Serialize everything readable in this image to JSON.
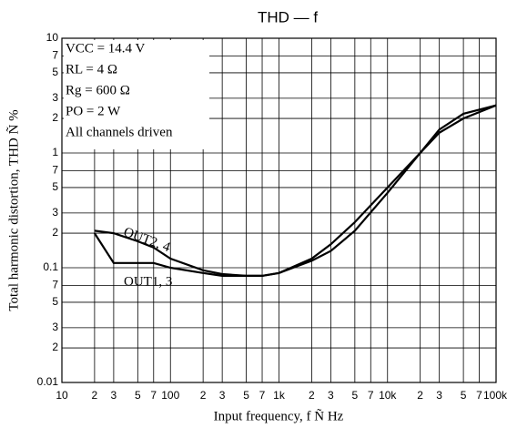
{
  "chart_data": {
    "type": "line",
    "title": "THD — f",
    "xlabel": "Input frequency, f Ñ  Hz",
    "ylabel": "Total harmonic distortion, THD Ñ %",
    "xlog": true,
    "ylog": true,
    "grid": true,
    "xlim": [
      10,
      100000
    ],
    "ylim": [
      0.01,
      10
    ],
    "xticks": [
      10,
      {
        "value": 20,
        "label": "2"
      },
      {
        "value": 30,
        "label": "3"
      },
      {
        "value": 50,
        "label": "5"
      },
      {
        "value": 70,
        "label": "7"
      },
      100,
      {
        "value": 200,
        "label": "2"
      },
      {
        "value": 300,
        "label": "3"
      },
      {
        "value": 500,
        "label": "5"
      },
      {
        "value": 700,
        "label": "7"
      },
      {
        "value": 1000,
        "label": "1k"
      },
      {
        "value": 2000,
        "label": "2"
      },
      {
        "value": 3000,
        "label": "3"
      },
      {
        "value": 5000,
        "label": "5"
      },
      {
        "value": 7000,
        "label": "7"
      },
      {
        "value": 10000,
        "label": "10k"
      },
      {
        "value": 20000,
        "label": "2"
      },
      {
        "value": 30000,
        "label": "3"
      },
      {
        "value": 50000,
        "label": "5"
      },
      {
        "value": 70000,
        "label": "7"
      },
      {
        "value": 100000,
        "label": "100k"
      }
    ],
    "yticks": [
      0.01,
      {
        "value": 0.02,
        "label": "2"
      },
      {
        "value": 0.03,
        "label": "3"
      },
      {
        "value": 0.05,
        "label": "5"
      },
      {
        "value": 0.07,
        "label": "7"
      },
      0.1,
      {
        "value": 0.2,
        "label": "2"
      },
      {
        "value": 0.3,
        "label": "3"
      },
      {
        "value": 0.5,
        "label": "5"
      },
      {
        "value": 0.7,
        "label": "7"
      },
      1,
      2,
      3,
      5,
      7,
      10
    ],
    "annotations": [
      "VCC = 14.4 V",
      "RL = 4 Ω",
      "Rg = 600  Ω",
      "PO = 2 W",
      "All channels driven"
    ],
    "x": [
      20,
      30,
      50,
      70,
      100,
      200,
      300,
      500,
      700,
      1000,
      2000,
      3000,
      5000,
      10000,
      20000,
      30000,
      50000,
      100000
    ],
    "series": [
      {
        "name": "OUT2, 4",
        "color": "#000000",
        "values": [
          0.21,
          0.2,
          0.17,
          0.15,
          0.12,
          0.095,
          0.088,
          0.085,
          0.085,
          0.09,
          0.12,
          0.16,
          0.25,
          0.5,
          1,
          1.5,
          2,
          2.6
        ]
      },
      {
        "name": "OUT1, 3",
        "color": "#000000",
        "values": [
          0.2,
          0.11,
          0.11,
          0.11,
          0.1,
          0.09,
          0.085,
          0.085,
          0.085,
          0.09,
          0.115,
          0.14,
          0.21,
          0.45,
          1,
          1.6,
          2.2,
          2.6
        ]
      }
    ]
  }
}
